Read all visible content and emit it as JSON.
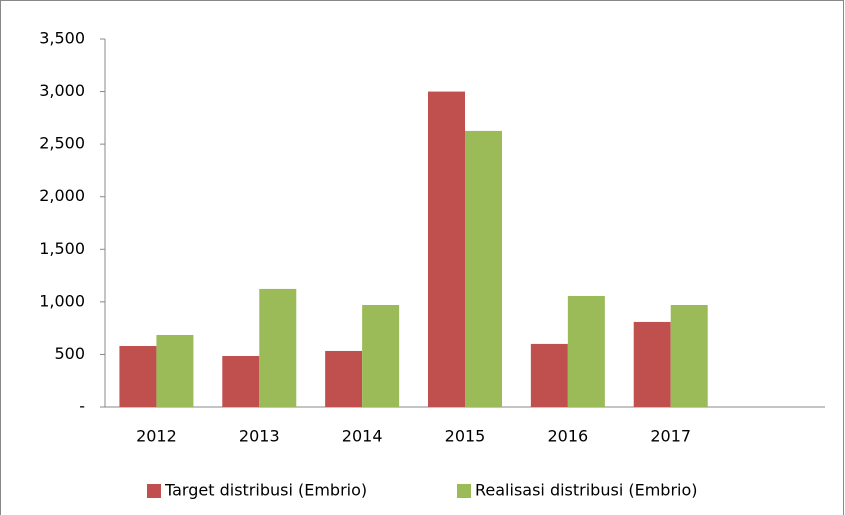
{
  "chart_data": {
    "type": "bar",
    "categories": [
      "2012",
      "2013",
      "2014",
      "2015",
      "2016",
      "2017",
      null
    ],
    "series": [
      {
        "name": "Target distribusi (Embrio)",
        "color": "#c0504d",
        "values": [
          580,
          485,
          533,
          3000,
          600,
          809,
          null
        ]
      },
      {
        "name": "Realisasi distribusi (Embrio)",
        "color": "#9bbb59",
        "values": [
          685,
          1123,
          970,
          2626,
          1056,
          970,
          null
        ]
      }
    ],
    "ylim": [
      0,
      3500
    ],
    "yticks": [
      {
        "value": 0,
        "label": "-"
      },
      500,
      {
        "value": 1000,
        "label": "1,000"
      },
      {
        "value": 1500,
        "label": "1,500"
      },
      {
        "value": 2000,
        "label": "2,000"
      },
      {
        "value": 2500,
        "label": "2,500"
      },
      {
        "value": 3000,
        "label": "3,000"
      },
      {
        "value": 3500,
        "label": "3,500"
      }
    ],
    "legend": "bottom"
  }
}
